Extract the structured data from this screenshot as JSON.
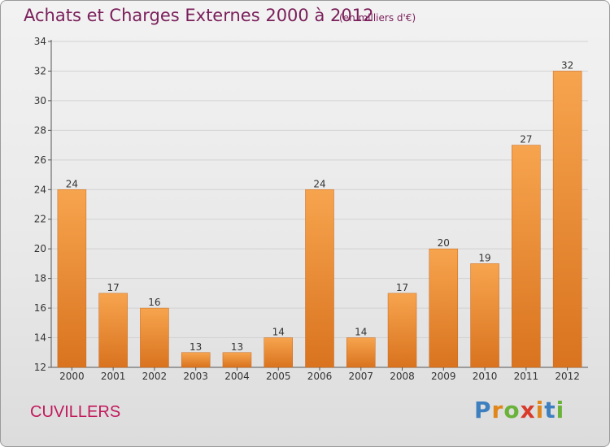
{
  "header": {
    "title": "Achats et Charges Externes 2000 à 2012",
    "subtitle": "(en milliers d'€)"
  },
  "footer": {
    "commune": "CUVILLERS",
    "logo_text": "Proxiti"
  },
  "colors": {
    "bar_light": "#f7a44e",
    "bar_dark": "#d9731f",
    "title": "#7a1f5a",
    "commune": "#c2185b",
    "logo_letters": [
      "#3d7fbf",
      "#e0861a",
      "#6ab23a",
      "#d93b2b",
      "#e0861a",
      "#3d7fbf",
      "#6ab23a"
    ]
  },
  "chart_data": {
    "type": "bar",
    "categories": [
      "2000",
      "2001",
      "2002",
      "2003",
      "2004",
      "2005",
      "2006",
      "2007",
      "2008",
      "2009",
      "2010",
      "2011",
      "2012"
    ],
    "values": [
      24,
      17,
      16,
      13,
      13,
      14,
      24,
      14,
      17,
      20,
      19,
      27,
      32
    ],
    "title": "Achats et Charges Externes 2000 à 2012",
    "subtitle": "(en milliers d'€)",
    "xlabel": "",
    "ylabel": "",
    "ylim": [
      12,
      34
    ],
    "yticks": [
      12,
      14,
      16,
      18,
      20,
      22,
      24,
      26,
      28,
      30,
      32,
      34
    ],
    "grid": true,
    "legend": "none",
    "data_labels": true
  }
}
